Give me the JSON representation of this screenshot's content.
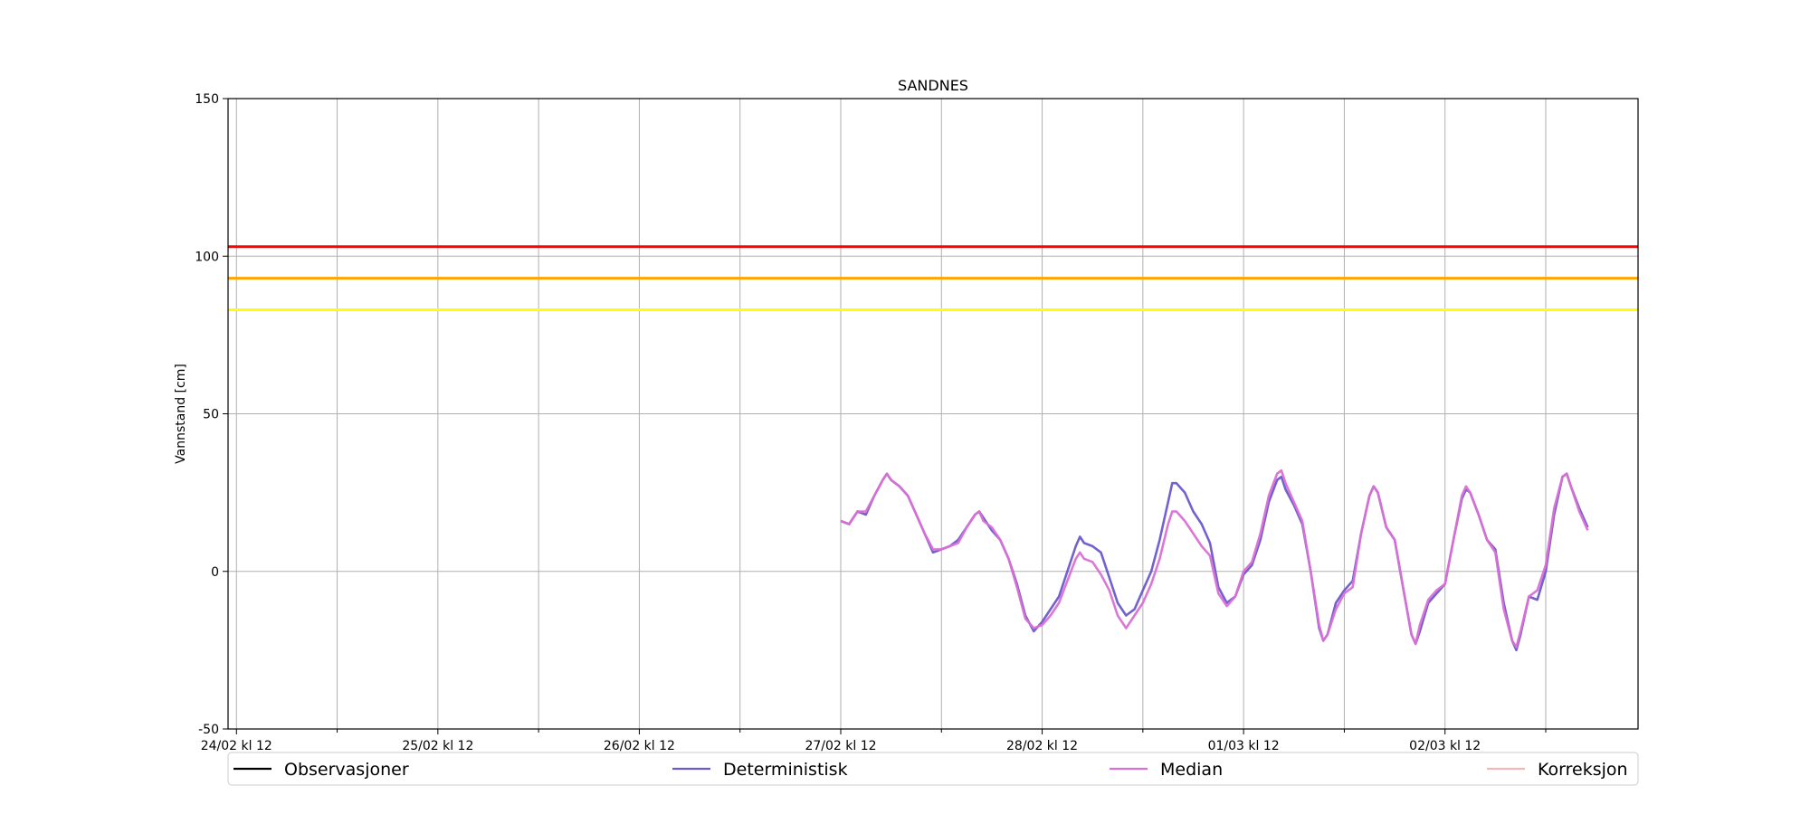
{
  "chart_data": {
    "type": "line",
    "title": "SANDNES",
    "xlabel": "",
    "ylabel": "Vannstand [cm]",
    "ylim": [
      -50,
      150
    ],
    "xlim_hours": [
      -1,
      167
    ],
    "y_ticks": [
      -50,
      0,
      50,
      100,
      150
    ],
    "x_tick_labels": [
      "24/02 kl 12",
      "25/02 kl 12",
      "26/02 kl 12",
      "27/02 kl 12",
      "28/02 kl 12",
      "01/03 kl 12",
      "02/03 kl 12"
    ],
    "x_tick_hours": [
      0,
      24,
      48,
      72,
      96,
      120,
      144
    ],
    "x_minor_tick_hours": [
      12,
      36,
      60,
      84,
      108,
      132,
      156
    ],
    "grid": true,
    "legend_position": "bottom",
    "thresholds": [
      {
        "value": 103,
        "color": "#ff0000"
      },
      {
        "value": 93,
        "color": "#ffa500"
      },
      {
        "value": 83,
        "color": "#ffff00"
      }
    ],
    "series": [
      {
        "name": "Observasjoner",
        "color": "#000000",
        "points": []
      },
      {
        "name": "Deterministisk",
        "color": "#6a5acd",
        "points": [
          [
            72,
            16
          ],
          [
            73,
            15
          ],
          [
            74,
            19
          ],
          [
            75,
            18
          ],
          [
            76,
            24
          ],
          [
            77,
            29
          ],
          [
            77.5,
            31
          ],
          [
            78,
            29
          ],
          [
            79,
            27
          ],
          [
            80,
            24
          ],
          [
            81,
            18
          ],
          [
            82,
            12
          ],
          [
            83,
            6
          ],
          [
            84,
            7
          ],
          [
            85,
            8
          ],
          [
            86,
            10
          ],
          [
            87,
            14
          ],
          [
            88,
            18
          ],
          [
            88.5,
            19
          ],
          [
            89,
            17
          ],
          [
            90,
            13
          ],
          [
            91,
            10
          ],
          [
            92,
            4
          ],
          [
            93,
            -4
          ],
          [
            94,
            -14
          ],
          [
            95,
            -19
          ],
          [
            96,
            -16
          ],
          [
            97,
            -12
          ],
          [
            98,
            -8
          ],
          [
            99,
            0
          ],
          [
            100,
            8
          ],
          [
            100.5,
            11
          ],
          [
            101,
            9
          ],
          [
            102,
            8
          ],
          [
            103,
            6
          ],
          [
            104,
            -2
          ],
          [
            105,
            -10
          ],
          [
            106,
            -14
          ],
          [
            107,
            -12
          ],
          [
            108,
            -6
          ],
          [
            109,
            0
          ],
          [
            110,
            10
          ],
          [
            111,
            22
          ],
          [
            111.5,
            28
          ],
          [
            112,
            28
          ],
          [
            113,
            25
          ],
          [
            114,
            19
          ],
          [
            115,
            15
          ],
          [
            116,
            9
          ],
          [
            117,
            -5
          ],
          [
            118,
            -10
          ],
          [
            119,
            -8
          ],
          [
            120,
            -1
          ],
          [
            121,
            2
          ],
          [
            122,
            10
          ],
          [
            123,
            22
          ],
          [
            124,
            29
          ],
          [
            124.5,
            30
          ],
          [
            125,
            26
          ],
          [
            126,
            21
          ],
          [
            127,
            15
          ],
          [
            128,
            0
          ],
          [
            129,
            -18
          ],
          [
            129.5,
            -22
          ],
          [
            130,
            -20
          ],
          [
            131,
            -10
          ],
          [
            132,
            -6
          ],
          [
            133,
            -3
          ],
          [
            134,
            12
          ],
          [
            135,
            24
          ],
          [
            135.5,
            27
          ],
          [
            136,
            25
          ],
          [
            137,
            14
          ],
          [
            138,
            10
          ],
          [
            139,
            -5
          ],
          [
            140,
            -20
          ],
          [
            140.5,
            -23
          ],
          [
            141,
            -19
          ],
          [
            142,
            -10
          ],
          [
            143,
            -7
          ],
          [
            144,
            -4
          ],
          [
            145,
            10
          ],
          [
            146,
            23
          ],
          [
            146.5,
            26
          ],
          [
            147,
            25
          ],
          [
            148,
            18
          ],
          [
            149,
            10
          ],
          [
            150,
            7
          ],
          [
            151,
            -10
          ],
          [
            152,
            -22
          ],
          [
            152.5,
            -25
          ],
          [
            153,
            -20
          ],
          [
            154,
            -8
          ],
          [
            155,
            -9
          ],
          [
            156,
            0
          ],
          [
            157,
            18
          ],
          [
            158,
            30
          ],
          [
            158.5,
            31
          ],
          [
            159,
            27
          ],
          [
            160,
            20
          ],
          [
            161,
            14
          ]
        ]
      },
      {
        "name": "Median",
        "color": "#da70d6",
        "points": [
          [
            72,
            16
          ],
          [
            73,
            15
          ],
          [
            74,
            19
          ],
          [
            75,
            19
          ],
          [
            76,
            24
          ],
          [
            77,
            29
          ],
          [
            77.5,
            31
          ],
          [
            78,
            29
          ],
          [
            79,
            27
          ],
          [
            80,
            24
          ],
          [
            81,
            18
          ],
          [
            82,
            12
          ],
          [
            83,
            7
          ],
          [
            84,
            7
          ],
          [
            85,
            8
          ],
          [
            86,
            9
          ],
          [
            87,
            14
          ],
          [
            88,
            18
          ],
          [
            88.5,
            19
          ],
          [
            89,
            16
          ],
          [
            90,
            14
          ],
          [
            91,
            10
          ],
          [
            92,
            4
          ],
          [
            93,
            -5
          ],
          [
            94,
            -15
          ],
          [
            95,
            -18
          ],
          [
            96,
            -17
          ],
          [
            97,
            -14
          ],
          [
            98,
            -10
          ],
          [
            99,
            -3
          ],
          [
            100,
            4
          ],
          [
            100.5,
            6
          ],
          [
            101,
            4
          ],
          [
            102,
            3
          ],
          [
            103,
            -1
          ],
          [
            104,
            -6
          ],
          [
            105,
            -14
          ],
          [
            106,
            -18
          ],
          [
            107,
            -14
          ],
          [
            108,
            -10
          ],
          [
            109,
            -4
          ],
          [
            110,
            4
          ],
          [
            111,
            15
          ],
          [
            111.5,
            19
          ],
          [
            112,
            19
          ],
          [
            113,
            16
          ],
          [
            114,
            12
          ],
          [
            115,
            8
          ],
          [
            116,
            5
          ],
          [
            117,
            -7
          ],
          [
            118,
            -11
          ],
          [
            119,
            -8
          ],
          [
            120,
            0
          ],
          [
            121,
            3
          ],
          [
            122,
            12
          ],
          [
            123,
            24
          ],
          [
            124,
            31
          ],
          [
            124.5,
            32
          ],
          [
            125,
            28
          ],
          [
            126,
            22
          ],
          [
            127,
            16
          ],
          [
            128,
            0
          ],
          [
            129,
            -17
          ],
          [
            129.5,
            -22
          ],
          [
            130,
            -20
          ],
          [
            131,
            -12
          ],
          [
            132,
            -7
          ],
          [
            133,
            -5
          ],
          [
            134,
            12
          ],
          [
            135,
            24
          ],
          [
            135.5,
            27
          ],
          [
            136,
            25
          ],
          [
            137,
            14
          ],
          [
            138,
            10
          ],
          [
            139,
            -5
          ],
          [
            140,
            -20
          ],
          [
            140.5,
            -23
          ],
          [
            141,
            -17
          ],
          [
            142,
            -9
          ],
          [
            143,
            -6
          ],
          [
            144,
            -4
          ],
          [
            145,
            10
          ],
          [
            146,
            24
          ],
          [
            146.5,
            27
          ],
          [
            147,
            25
          ],
          [
            148,
            18
          ],
          [
            149,
            10
          ],
          [
            150,
            6
          ],
          [
            151,
            -12
          ],
          [
            152,
            -22
          ],
          [
            152.5,
            -24
          ],
          [
            153,
            -19
          ],
          [
            154,
            -8
          ],
          [
            155,
            -6
          ],
          [
            156,
            2
          ],
          [
            157,
            20
          ],
          [
            158,
            30
          ],
          [
            158.5,
            31
          ],
          [
            159,
            27
          ],
          [
            160,
            19
          ],
          [
            161,
            13
          ]
        ]
      },
      {
        "name": "Korreksjon",
        "color": "#f2b8b8",
        "points": []
      }
    ]
  }
}
